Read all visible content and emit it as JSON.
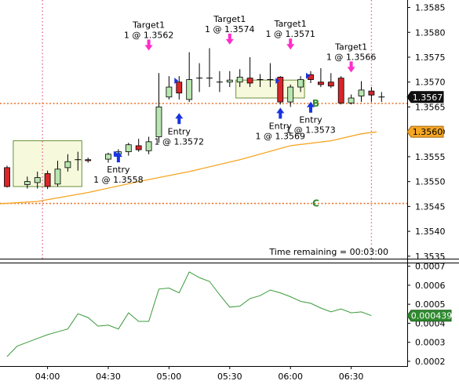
{
  "chart_data": [
    {
      "type": "candlestick",
      "instrument_panel": "price",
      "ylim": [
        1.35345,
        1.35865
      ],
      "y_ticks": [
        "1.3535",
        "1.3540",
        "1.3545",
        "1.3550",
        "1.3555",
        "1.3560",
        "1.3565",
        "1.3570",
        "1.3575",
        "1.3580",
        "1.3585"
      ],
      "x_ticks": [
        "04:00",
        "04:30",
        "05:00",
        "05:30",
        "06:00",
        "06:30"
      ],
      "candles": [
        {
          "x": 0,
          "o": 1.35528,
          "c": 1.3549,
          "h": 1.35532,
          "l": 1.35488
        },
        {
          "x": 2,
          "o": 1.35494,
          "c": 1.355,
          "h": 1.3551,
          "l": 1.35486
        },
        {
          "x": 3,
          "o": 1.35498,
          "c": 1.35508,
          "h": 1.3552,
          "l": 1.35486
        },
        {
          "x": 4,
          "o": 1.35516,
          "c": 1.3549,
          "h": 1.35522,
          "l": 1.35485
        },
        {
          "x": 5,
          "o": 1.35495,
          "c": 1.35525,
          "h": 1.35542,
          "l": 1.3549
        },
        {
          "x": 6,
          "o": 1.35528,
          "c": 1.3554,
          "h": 1.35555,
          "l": 1.3552
        },
        {
          "x": 7,
          "o": 1.35544,
          "c": 1.35544,
          "h": 1.3556,
          "l": 1.35522
        },
        {
          "x": 8,
          "o": 1.35544,
          "c": 1.35542,
          "h": 1.35548,
          "l": 1.35538
        },
        {
          "x": 10,
          "o": 1.35545,
          "c": 1.35555,
          "h": 1.35558,
          "l": 1.35538
        },
        {
          "x": 11,
          "o": 1.35555,
          "c": 1.3556,
          "h": 1.35565,
          "l": 1.3555
        },
        {
          "x": 12,
          "o": 1.3556,
          "c": 1.35574,
          "h": 1.35578,
          "l": 1.35552
        },
        {
          "x": 13,
          "o": 1.35572,
          "c": 1.35564,
          "h": 1.35586,
          "l": 1.3556
        },
        {
          "x": 14,
          "o": 1.35562,
          "c": 1.3558,
          "h": 1.3559,
          "l": 1.35555
        },
        {
          "x": 15,
          "o": 1.3559,
          "c": 1.3565,
          "h": 1.35718,
          "l": 1.35578
        },
        {
          "x": 16,
          "o": 1.3567,
          "c": 1.3569,
          "h": 1.35712,
          "l": 1.35665
        },
        {
          "x": 17,
          "o": 1.357,
          "c": 1.35678,
          "h": 1.35712,
          "l": 1.35665
        },
        {
          "x": 18,
          "o": 1.35665,
          "c": 1.35705,
          "h": 1.3576,
          "l": 1.3566
        },
        {
          "x": 19,
          "o": 1.35708,
          "c": 1.35708,
          "h": 1.35738,
          "l": 1.3568
        },
        {
          "x": 20,
          "o": 1.35708,
          "c": 1.35708,
          "h": 1.35768,
          "l": 1.3569
        },
        {
          "x": 21,
          "o": 1.357,
          "c": 1.357,
          "h": 1.35722,
          "l": 1.3568
        },
        {
          "x": 22,
          "o": 1.357,
          "c": 1.35704,
          "h": 1.35722,
          "l": 1.3569
        },
        {
          "x": 23,
          "o": 1.357,
          "c": 1.3571,
          "h": 1.35726,
          "l": 1.3569
        },
        {
          "x": 24,
          "o": 1.35708,
          "c": 1.35698,
          "h": 1.3575,
          "l": 1.3569
        },
        {
          "x": 25,
          "o": 1.35705,
          "c": 1.35705,
          "h": 1.35716,
          "l": 1.3569
        },
        {
          "x": 26,
          "o": 1.35705,
          "c": 1.35705,
          "h": 1.35738,
          "l": 1.3569
        },
        {
          "x": 27,
          "o": 1.3571,
          "c": 1.3566,
          "h": 1.35712,
          "l": 1.35655
        },
        {
          "x": 28,
          "o": 1.3566,
          "c": 1.3569,
          "h": 1.35695,
          "l": 1.3565
        },
        {
          "x": 29,
          "o": 1.3569,
          "c": 1.35705,
          "h": 1.35712,
          "l": 1.3568
        },
        {
          "x": 30,
          "o": 1.35715,
          "c": 1.35705,
          "h": 1.35722,
          "l": 1.35698
        },
        {
          "x": 31,
          "o": 1.357,
          "c": 1.35695,
          "h": 1.35728,
          "l": 1.3569
        },
        {
          "x": 32,
          "o": 1.357,
          "c": 1.35692,
          "h": 1.35718,
          "l": 1.35688
        },
        {
          "x": 33,
          "o": 1.35708,
          "c": 1.35658,
          "h": 1.35712,
          "l": 1.35655
        },
        {
          "x": 34,
          "o": 1.35658,
          "c": 1.35668,
          "h": 1.35675,
          "l": 1.35655
        },
        {
          "x": 35,
          "o": 1.35672,
          "c": 1.35684,
          "h": 1.35702,
          "l": 1.3566
        },
        {
          "x": 36,
          "o": 1.35682,
          "c": 1.35674,
          "h": 1.3569,
          "l": 1.3566
        },
        {
          "x": 37,
          "o": 1.3567,
          "c": 1.3567,
          "h": 1.3568,
          "l": 1.3566
        }
      ],
      "x_lookup": {
        "start_time": "03:40",
        "bar_minutes": 5
      },
      "consolidation_boxes": [
        {
          "x_start": 1.0,
          "x_end": 7.0,
          "y_low": 1.3549,
          "y_high": 1.35582
        },
        {
          "x_start": 23.0,
          "x_end": 29.0,
          "y_low": 1.35668,
          "y_high": 1.35704
        }
      ],
      "trade_markers": [
        {
          "kind": "entry",
          "x": 11,
          "price_level": 1.35548,
          "label_1": "Entry",
          "label_2": "1 @ 1.3558"
        },
        {
          "kind": "entry",
          "x": 17,
          "price_level": 1.35625,
          "label_1": "Entry",
          "label_2": "1 @ 1.3572"
        },
        {
          "kind": "entry",
          "x": 27,
          "price_level": 1.35636,
          "label_1": "Entry",
          "label_2": "1 @ 1.3569"
        },
        {
          "kind": "entry",
          "x": 30,
          "price_level": 1.35648,
          "label_1": "Entry",
          "label_2": "1 @ 1.3573"
        },
        {
          "kind": "target",
          "x": 14,
          "price_level": 1.35776,
          "label_1": "Target1",
          "label_2": "1 @ 1.3562"
        },
        {
          "kind": "target",
          "x": 22,
          "price_level": 1.35788,
          "label_1": "Target1",
          "label_2": "1 @ 1.3574"
        },
        {
          "kind": "target",
          "x": 28,
          "price_level": 1.35778,
          "label_1": "Target1",
          "label_2": "1 @ 1.3571"
        },
        {
          "kind": "target",
          "x": 34,
          "price_level": 1.35732,
          "label_1": "Target1",
          "label_2": "1 @ 1.3566"
        }
      ],
      "moving_average": {
        "color": "#f5a623",
        "points": [
          [
            -1,
            1.35455
          ],
          [
            3,
            1.3546
          ],
          [
            8,
            1.35478
          ],
          [
            13,
            1.355
          ],
          [
            18,
            1.3552
          ],
          [
            23,
            1.35544
          ],
          [
            28,
            1.35572
          ],
          [
            32,
            1.35582
          ],
          [
            35,
            1.35596
          ],
          [
            36.5,
            1.356
          ]
        ]
      },
      "horizontal_lines": [
        {
          "price": 1.35657,
          "color": "#e8702a"
        },
        {
          "price": 1.35456,
          "color": "#e8702a"
        }
      ],
      "vertical_lines": [
        {
          "x": 3.5,
          "color": "#e46a9a"
        },
        {
          "x": 36.0,
          "color": "#e46a9a"
        }
      ],
      "letter_markers": [
        {
          "text": "B",
          "x": 30.5,
          "price_level": 1.35657,
          "color": "#2e8b2e"
        },
        {
          "text": "C",
          "x": 30.5,
          "price_level": 1.35456,
          "color": "#2e8b2e"
        }
      ],
      "last_price_label": "1.3567",
      "last_price_value": 1.3567,
      "ma_price_label": "1.3560",
      "ma_price_value": 1.356,
      "time_remaining": "Time remaining = 00:03:00"
    },
    {
      "type": "line",
      "instrument_panel": "indicator",
      "ylim": [
        0.000175,
        0.000715
      ],
      "y_ticks": [
        "0.0002",
        "0.0003",
        "0.0004",
        "0.0005",
        "0.0006",
        "0.0007"
      ],
      "line_color": "#3a9a3a",
      "points": [
        [
          0,
          0.000225
        ],
        [
          1,
          0.00028
        ],
        [
          2,
          0.0003
        ],
        [
          3,
          0.00032
        ],
        [
          4,
          0.00034
        ],
        [
          5,
          0.000355
        ],
        [
          6,
          0.00037
        ],
        [
          7,
          0.00045
        ],
        [
          8,
          0.00043
        ],
        [
          9,
          0.000385
        ],
        [
          10,
          0.00039
        ],
        [
          11,
          0.00037
        ],
        [
          12,
          0.000455
        ],
        [
          13,
          0.00041
        ],
        [
          14,
          0.00041
        ],
        [
          15,
          0.00058
        ],
        [
          16,
          0.000585
        ],
        [
          17,
          0.00056
        ],
        [
          18,
          0.00067
        ],
        [
          19,
          0.00064
        ],
        [
          20,
          0.00062
        ],
        [
          21,
          0.00055
        ],
        [
          22,
          0.000485
        ],
        [
          23,
          0.00049
        ],
        [
          24,
          0.00053
        ],
        [
          25,
          0.000545
        ],
        [
          26,
          0.000575
        ],
        [
          27,
          0.00056
        ],
        [
          28,
          0.00054
        ],
        [
          29,
          0.000515
        ],
        [
          30,
          0.000505
        ],
        [
          31,
          0.00048
        ],
        [
          32,
          0.00046
        ],
        [
          33,
          0.000475
        ],
        [
          34,
          0.000455
        ],
        [
          35,
          0.00046
        ],
        [
          36,
          0.00044
        ]
      ],
      "last_value_label": "0.000439"
    }
  ],
  "colors": {
    "bull_body": "#b8e6b0",
    "bear_body": "#d8262a",
    "box_fill": "#f7f9dc",
    "box_stroke": "#6b8f3e",
    "entry_arrow": "#1a33e0",
    "target_arrow": "#ff2ec8",
    "axis": "#000000"
  }
}
